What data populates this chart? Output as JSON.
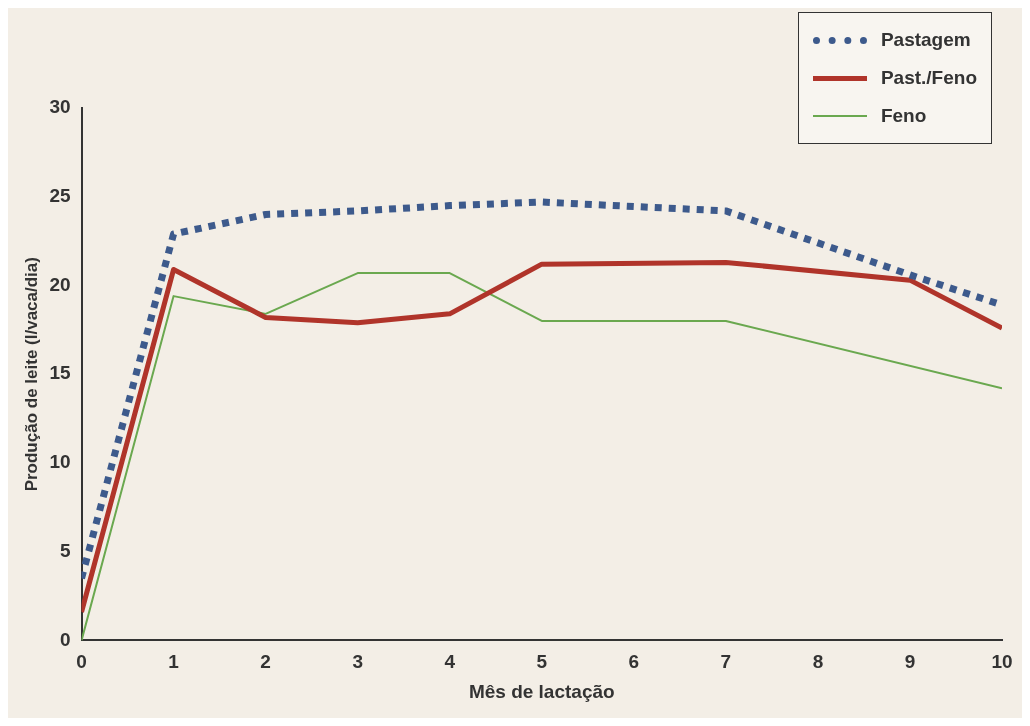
{
  "chart_data": {
    "type": "line",
    "xlabel": "Mês de lactação",
    "ylabel": "Produção de leite (l/vaca/dia)",
    "xlim": [
      0,
      10
    ],
    "xticks": [
      0,
      1,
      2,
      3,
      4,
      5,
      6,
      7,
      8,
      9,
      10
    ],
    "ylim": [
      0,
      30
    ],
    "yticks": [
      0,
      5,
      10,
      15,
      20,
      25,
      30
    ],
    "grid": false,
    "legend": "top right",
    "marker": "none",
    "series": [
      {
        "name": "Pastagem",
        "color": "#3d5a8c",
        "line_style": "dotted",
        "x": [
          0,
          1,
          2,
          3,
          4,
          5,
          7,
          9,
          10
        ],
        "values": [
          3.5,
          22.9,
          24.0,
          24.2,
          24.5,
          24.7,
          24.2,
          20.6,
          18.9
        ]
      },
      {
        "name": "Past./Feno",
        "color": "#b0342a",
        "line_style": "solid",
        "x": [
          0,
          1,
          2,
          3,
          4,
          5,
          7,
          9,
          10
        ],
        "values": [
          1.6,
          20.9,
          18.2,
          17.9,
          18.4,
          21.2,
          21.3,
          20.3,
          17.6
        ]
      },
      {
        "name": "Feno",
        "color": "#6aa84f",
        "line_style": "solid",
        "x": [
          0,
          1,
          2,
          3,
          4,
          5,
          7,
          10
        ],
        "values": [
          0,
          19.4,
          18.4,
          20.7,
          20.7,
          18.0,
          18.0,
          14.2
        ]
      }
    ]
  }
}
